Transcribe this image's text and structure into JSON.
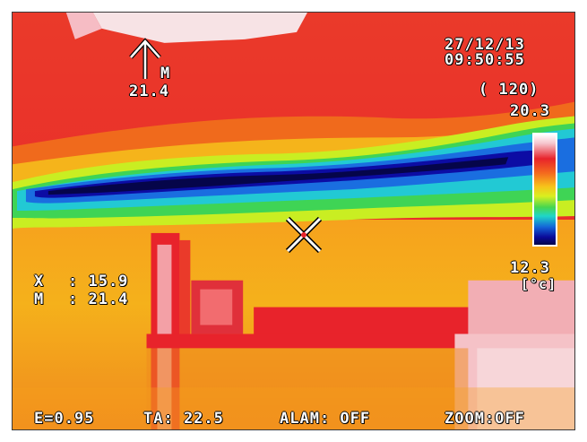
{
  "overlay": {
    "date": "27/12/13",
    "time": "09:50:55",
    "palette_mode": "( 120)",
    "scale_max": "20.3",
    "scale_min": "12.3",
    "unit": "[°c]",
    "max_marker_label": "M",
    "max_marker_value": "21.4",
    "cursor_x_label": "X",
    "cursor_x_value": ": 15.9",
    "cursor_m_label": "M",
    "cursor_m_value": ": 21.4",
    "emissivity": "E=0.95",
    "ambient": "TA: 22.5",
    "alarm": "ALAM: OFF",
    "zoom": "ZOOM:OFF"
  },
  "icons": {
    "max_marker": "up-arrow-icon",
    "spot_cursor": "crosshair-icon"
  },
  "colors": {
    "hot": "#e8232b",
    "warm": "#f7c21a",
    "cool": "#1fd6c8",
    "cold": "#05054a",
    "osd_text": "#ffffff"
  }
}
